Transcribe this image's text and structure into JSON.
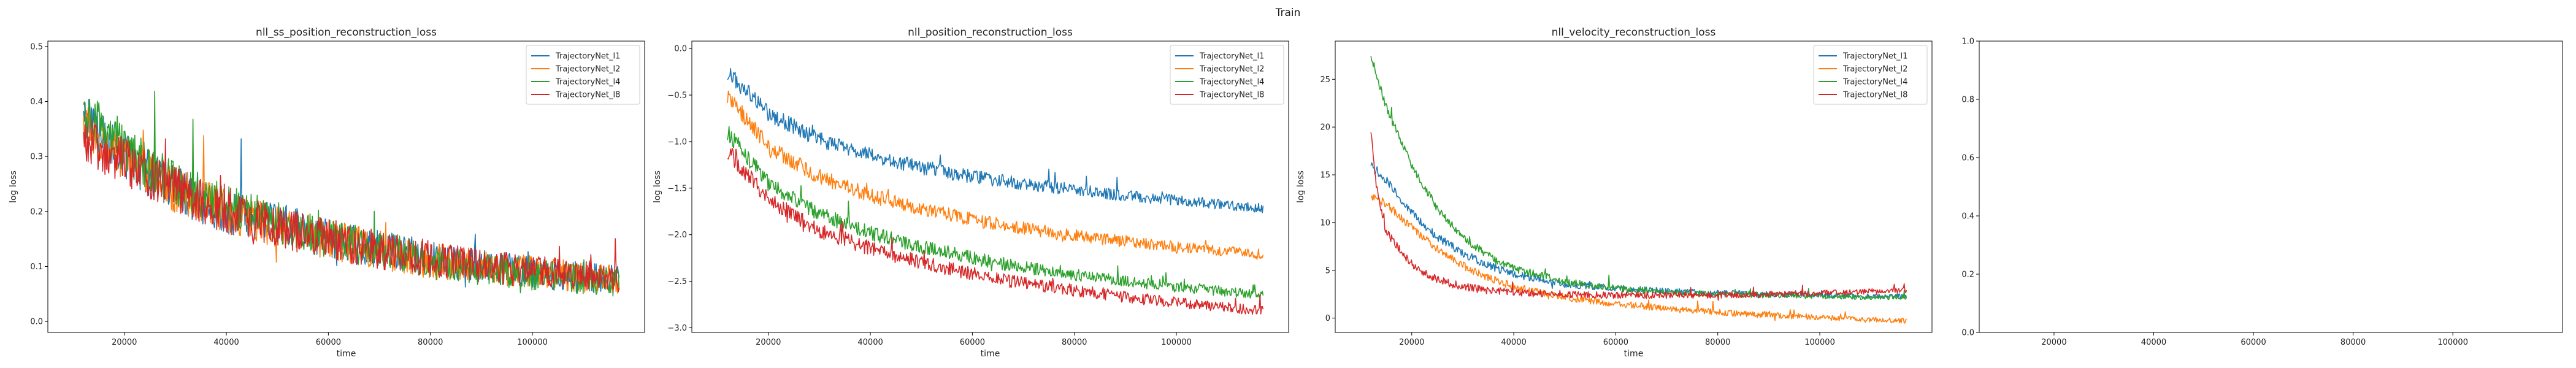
{
  "figure": {
    "suptitle": "Train"
  },
  "colors": {
    "l1": "#1f77b4",
    "l2": "#ff7f0e",
    "l4": "#2ca02c",
    "l8": "#d62728"
  },
  "chart_data": [
    {
      "type": "line",
      "title": "nll_ss_position_reconstruction_loss",
      "xlabel": "time",
      "ylabel": "log loss",
      "xlim": [
        5000,
        122000
      ],
      "ylim": [
        -0.02,
        0.51
      ],
      "xticks": [
        20000,
        40000,
        60000,
        80000,
        100000
      ],
      "xtick_labels": [
        "20000",
        "40000",
        "60000",
        "80000",
        "100000"
      ],
      "yticks": [
        0.0,
        0.1,
        0.2,
        0.3,
        0.4,
        0.5
      ],
      "ytick_labels": [
        "0.0",
        "0.1",
        "0.2",
        "0.3",
        "0.4",
        "0.5"
      ],
      "legend": "top-right",
      "noise_scale": 0.035,
      "series": [
        {
          "name": "TrajectoryNet_l1",
          "color_key": "l1",
          "x": [
            12000,
            20000,
            30000,
            40000,
            50000,
            60000,
            70000,
            80000,
            90000,
            100000,
            110000,
            117000
          ],
          "values": [
            0.37,
            0.3,
            0.24,
            0.2,
            0.18,
            0.15,
            0.13,
            0.115,
            0.1,
            0.09,
            0.08,
            0.075
          ]
        },
        {
          "name": "TrajectoryNet_l2",
          "color_key": "l2",
          "x": [
            12000,
            20000,
            30000,
            40000,
            50000,
            60000,
            70000,
            80000,
            90000,
            100000,
            110000,
            117000
          ],
          "values": [
            0.36,
            0.3,
            0.24,
            0.2,
            0.17,
            0.15,
            0.13,
            0.11,
            0.1,
            0.09,
            0.08,
            0.075
          ]
        },
        {
          "name": "TrajectoryNet_l4",
          "color_key": "l4",
          "x": [
            12000,
            20000,
            30000,
            40000,
            50000,
            60000,
            70000,
            80000,
            90000,
            100000,
            110000,
            117000
          ],
          "values": [
            0.38,
            0.31,
            0.25,
            0.21,
            0.18,
            0.15,
            0.13,
            0.11,
            0.095,
            0.085,
            0.075,
            0.07
          ]
        },
        {
          "name": "TrajectoryNet_l8",
          "color_key": "l8",
          "x": [
            12000,
            20000,
            30000,
            40000,
            50000,
            60000,
            70000,
            80000,
            90000,
            100000,
            110000,
            117000
          ],
          "values": [
            0.33,
            0.29,
            0.24,
            0.2,
            0.17,
            0.15,
            0.13,
            0.115,
            0.1,
            0.09,
            0.085,
            0.08
          ]
        }
      ]
    },
    {
      "type": "line",
      "title": "nll_position_reconstruction_loss",
      "xlabel": "time",
      "ylabel": "log loss",
      "xlim": [
        5000,
        122000
      ],
      "ylim": [
        -3.05,
        0.08
      ],
      "xticks": [
        20000,
        40000,
        60000,
        80000,
        100000
      ],
      "xtick_labels": [
        "20000",
        "40000",
        "60000",
        "80000",
        "100000"
      ],
      "yticks": [
        0.0,
        -0.5,
        -1.0,
        -1.5,
        -2.0,
        -2.5,
        -3.0
      ],
      "ytick_labels": [
        "0.0",
        "−0.5",
        "−1.0",
        "−1.5",
        "−2.0",
        "−2.5",
        "−3.0"
      ],
      "legend": "top-right",
      "noise_scale": 0.07,
      "series": [
        {
          "name": "TrajectoryNet_l1",
          "color_key": "l1",
          "x": [
            12000,
            20000,
            30000,
            40000,
            50000,
            60000,
            70000,
            80000,
            90000,
            100000,
            110000,
            117000
          ],
          "values": [
            -0.25,
            -0.7,
            -0.98,
            -1.15,
            -1.28,
            -1.38,
            -1.45,
            -1.52,
            -1.58,
            -1.63,
            -1.68,
            -1.72
          ]
        },
        {
          "name": "TrajectoryNet_l2",
          "color_key": "l2",
          "x": [
            12000,
            20000,
            30000,
            40000,
            50000,
            60000,
            70000,
            80000,
            90000,
            100000,
            110000,
            117000
          ],
          "values": [
            -0.5,
            -1.05,
            -1.38,
            -1.58,
            -1.72,
            -1.84,
            -1.93,
            -2.01,
            -2.07,
            -2.13,
            -2.18,
            -2.21
          ]
        },
        {
          "name": "TrajectoryNet_l4",
          "color_key": "l4",
          "x": [
            12000,
            20000,
            30000,
            40000,
            50000,
            60000,
            70000,
            80000,
            90000,
            100000,
            110000,
            117000
          ],
          "values": [
            -0.9,
            -1.45,
            -1.78,
            -1.98,
            -2.13,
            -2.25,
            -2.35,
            -2.43,
            -2.5,
            -2.56,
            -2.61,
            -2.64
          ]
        },
        {
          "name": "TrajectoryNet_l8",
          "color_key": "l8",
          "x": [
            12000,
            20000,
            30000,
            40000,
            50000,
            60000,
            70000,
            80000,
            90000,
            100000,
            110000,
            117000
          ],
          "values": [
            -1.1,
            -1.62,
            -1.95,
            -2.15,
            -2.3,
            -2.42,
            -2.52,
            -2.6,
            -2.67,
            -2.73,
            -2.78,
            -2.82
          ]
        }
      ]
    },
    {
      "type": "line",
      "title": "nll_velocity_reconstruction_loss",
      "xlabel": "time",
      "ylabel": "log loss",
      "xlim": [
        5000,
        122000
      ],
      "ylim": [
        -1.5,
        29
      ],
      "xticks": [
        20000,
        40000,
        60000,
        80000,
        100000
      ],
      "xtick_labels": [
        "20000",
        "40000",
        "60000",
        "80000",
        "100000"
      ],
      "yticks": [
        0,
        5,
        10,
        15,
        20,
        25
      ],
      "ytick_labels": [
        "0",
        "5",
        "10",
        "15",
        "20",
        "25"
      ],
      "legend": "top-right",
      "noise_scale": 0.35,
      "series": [
        {
          "name": "TrajectoryNet_l1",
          "color_key": "l1",
          "x": [
            12000,
            15000,
            20000,
            25000,
            30000,
            35000,
            40000,
            50000,
            60000,
            70000,
            80000,
            90000,
            100000,
            110000,
            117000
          ],
          "values": [
            16.0,
            14.5,
            11.0,
            8.5,
            6.8,
            5.5,
            4.6,
            3.6,
            3.1,
            2.8,
            2.6,
            2.5,
            2.4,
            2.3,
            2.3
          ]
        },
        {
          "name": "TrajectoryNet_l2",
          "color_key": "l2",
          "x": [
            12000,
            15000,
            20000,
            25000,
            30000,
            35000,
            40000,
            50000,
            60000,
            70000,
            80000,
            90000,
            100000,
            110000,
            117000
          ],
          "values": [
            12.8,
            12.0,
            9.5,
            7.2,
            5.5,
            4.2,
            3.3,
            2.2,
            1.5,
            1.0,
            0.6,
            0.3,
            0.1,
            -0.2,
            -0.3
          ]
        },
        {
          "name": "TrajectoryNet_l4",
          "color_key": "l4",
          "x": [
            12000,
            15000,
            20000,
            25000,
            30000,
            35000,
            40000,
            50000,
            60000,
            70000,
            80000,
            90000,
            100000,
            110000,
            117000
          ],
          "values": [
            27.5,
            22.0,
            16.0,
            11.5,
            8.5,
            6.5,
            5.2,
            3.8,
            3.1,
            2.7,
            2.5,
            2.4,
            2.3,
            2.2,
            2.2
          ]
        },
        {
          "name": "TrajectoryNet_l8",
          "color_key": "l8",
          "x": [
            12000,
            13000,
            15000,
            20000,
            25000,
            30000,
            35000,
            40000,
            50000,
            60000,
            70000,
            80000,
            90000,
            100000,
            110000,
            117000
          ],
          "values": [
            19.5,
            14.0,
            9.0,
            5.5,
            4.0,
            3.3,
            2.9,
            2.7,
            2.5,
            2.4,
            2.4,
            2.4,
            2.5,
            2.6,
            2.8,
            2.9
          ]
        }
      ]
    },
    {
      "type": "line",
      "title": "",
      "xlabel": "",
      "ylabel": "",
      "xlim": [
        5000,
        122000
      ],
      "ylim": [
        0.0,
        1.0
      ],
      "xticks": [
        20000,
        40000,
        60000,
        80000,
        100000
      ],
      "xtick_labels": [
        "20000",
        "40000",
        "60000",
        "80000",
        "100000"
      ],
      "yticks": [
        0.0,
        0.2,
        0.4,
        0.6,
        0.8,
        1.0
      ],
      "ytick_labels": [
        "0.0",
        "0.2",
        "0.4",
        "0.6",
        "0.8",
        "1.0"
      ],
      "legend": "top-right",
      "series": []
    }
  ]
}
